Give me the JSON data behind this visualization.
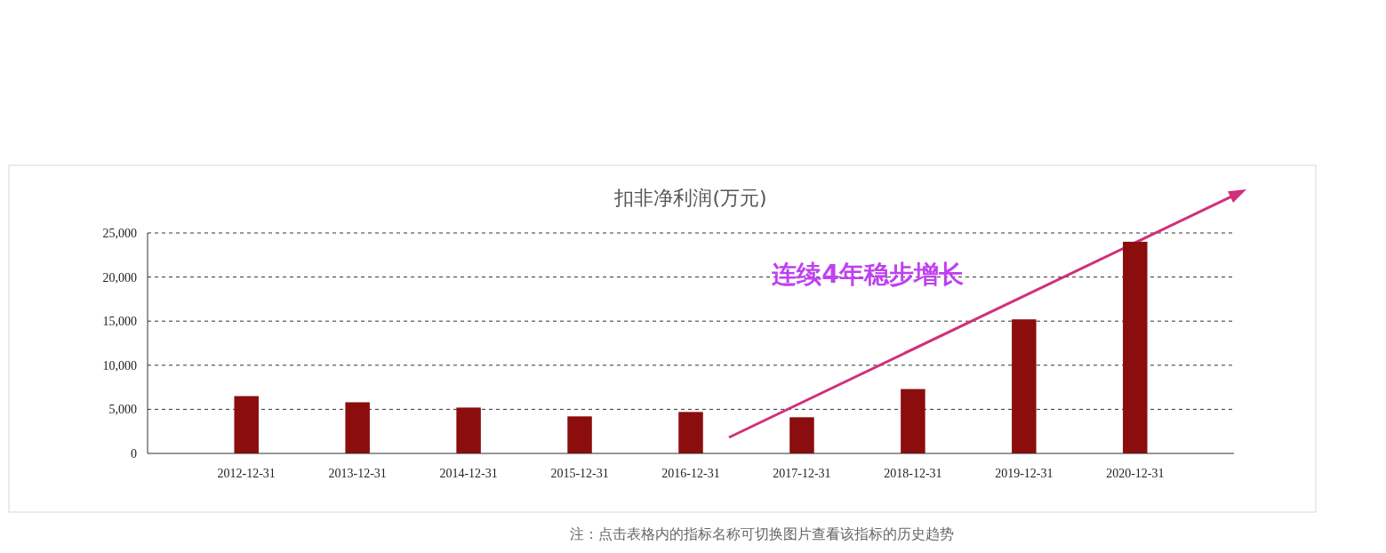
{
  "chart_data": {
    "type": "bar",
    "title": "扣非净利润(万元)",
    "categories": [
      "2012-12-31",
      "2013-12-31",
      "2014-12-31",
      "2015-12-31",
      "2016-12-31",
      "2017-12-31",
      "2018-12-31",
      "2019-12-31",
      "2020-12-31"
    ],
    "values": [
      6500,
      5800,
      5200,
      4200,
      4700,
      4100,
      7300,
      15200,
      24000
    ],
    "color": "#8b0d0d",
    "ylim": [
      0,
      25000
    ],
    "yticks": [
      {
        "value": 0,
        "label": "0"
      },
      {
        "value": 5000,
        "label": "5,000"
      },
      {
        "value": 10000,
        "label": "10,000"
      },
      {
        "value": 15000,
        "label": "15,000"
      },
      {
        "value": 20000,
        "label": "20,000"
      },
      {
        "value": 25000,
        "label": "25,000"
      }
    ],
    "grid": "y",
    "annotations": [
      "连续4年稳步增长",
      "注：点击表格内的指标名称可切换图片查看该指标的历史趋势"
    ]
  }
}
